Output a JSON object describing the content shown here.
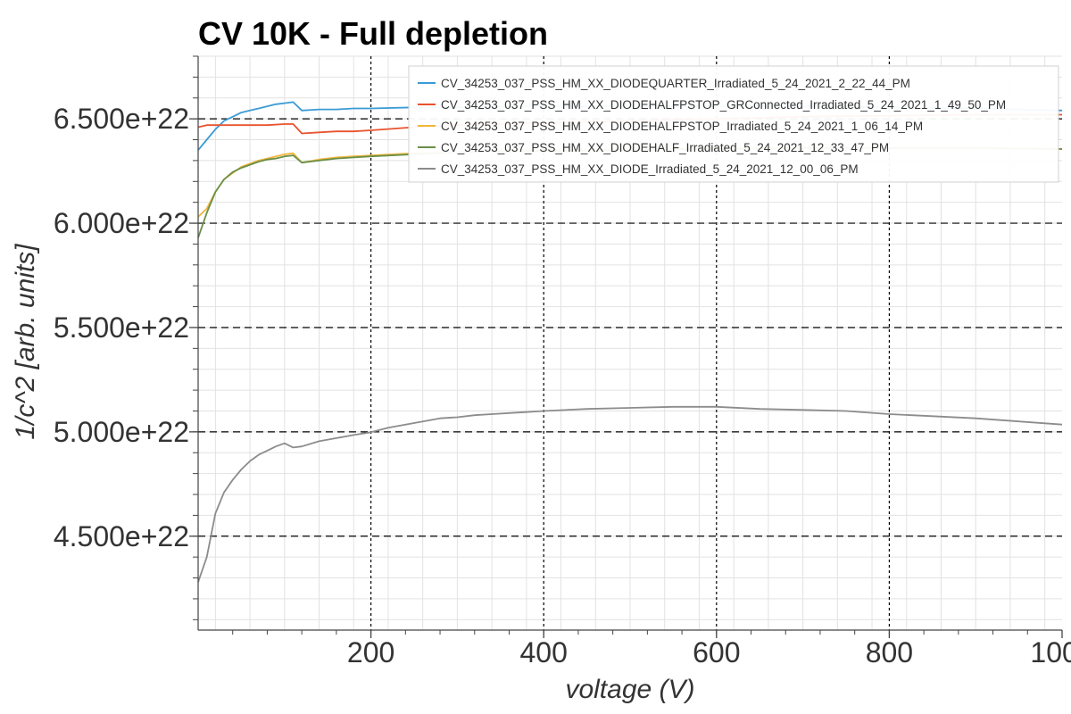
{
  "chart_data": {
    "type": "line",
    "title": "CV 10K - Full depletion",
    "xlabel": "voltage (V)",
    "ylabel": "1/c^2 [arb. units]",
    "xlim": [
      0,
      1000
    ],
    "ylim": [
      4.05e+22,
      6.8e+22
    ],
    "x_ticks": [
      200,
      400,
      600,
      800,
      1000
    ],
    "x_tick_labels": [
      "200",
      "400",
      "600",
      "800",
      "1000"
    ],
    "y_ticks": [
      4.5e+22,
      5e+22,
      5.5e+22,
      6e+22,
      6.5e+22
    ],
    "y_tick_labels": [
      "4.500e+22",
      "5.000e+22",
      "5.500e+22",
      "6.000e+22",
      "6.500e+22"
    ],
    "grid": true,
    "legend_position": "top-right",
    "reference_lines": {
      "horizontal": [
        4.5e+22,
        5e+22,
        5.5e+22,
        6e+22,
        6.5e+22
      ],
      "vertical": [
        200,
        400,
        600,
        800
      ]
    },
    "series": [
      {
        "name": "CV_34253_037_PSS_HM_XX_DIODEQUARTER_Irradiated_5_24_2021_2_22_44_PM",
        "color": "#3a9bd5",
        "x": [
          0,
          10,
          20,
          30,
          40,
          50,
          60,
          70,
          80,
          90,
          100,
          110,
          120,
          140,
          160,
          180,
          200,
          250,
          300,
          400,
          500,
          600,
          700,
          800,
          900,
          1000
        ],
        "y": [
          6.35e+22,
          6.4e+22,
          6.45e+22,
          6.49e+22,
          6.51e+22,
          6.53e+22,
          6.54e+22,
          6.55e+22,
          6.56e+22,
          6.57e+22,
          6.575e+22,
          6.58e+22,
          6.54e+22,
          6.545e+22,
          6.545e+22,
          6.55e+22,
          6.55e+22,
          6.555e+22,
          6.555e+22,
          6.56e+22,
          6.56e+22,
          6.56e+22,
          6.56e+22,
          6.555e+22,
          6.55e+22,
          6.54e+22
        ]
      },
      {
        "name": "CV_34253_037_PSS_HM_XX_DIODEHALFPSTOP_GRConnected_Irradiated_5_24_2021_1_49_50_PM",
        "color": "#e8532e",
        "x": [
          0,
          10,
          20,
          40,
          60,
          80,
          100,
          110,
          120,
          140,
          160,
          180,
          200,
          250,
          300,
          400,
          500,
          600,
          700,
          800,
          900,
          1000
        ],
        "y": [
          6.46e+22,
          6.47e+22,
          6.47e+22,
          6.47e+22,
          6.47e+22,
          6.47e+22,
          6.475e+22,
          6.475e+22,
          6.43e+22,
          6.435e+22,
          6.44e+22,
          6.44e+22,
          6.445e+22,
          6.46e+22,
          6.47e+22,
          6.48e+22,
          6.49e+22,
          6.5e+22,
          6.51e+22,
          6.515e+22,
          6.52e+22,
          6.52e+22
        ]
      },
      {
        "name": "CV_34253_037_PSS_HM_XX_DIODEHALFPSTOP_Irradiated_5_24_2021_1_06_14_PM",
        "color": "#f0b63c",
        "x": [
          0,
          10,
          20,
          30,
          40,
          50,
          60,
          70,
          80,
          90,
          100,
          110,
          120,
          140,
          160,
          180,
          200,
          250,
          300,
          400,
          500,
          600,
          700,
          800,
          900,
          1000
        ],
        "y": [
          6.03e+22,
          6.07e+22,
          6.15e+22,
          6.21e+22,
          6.24e+22,
          6.27e+22,
          6.285e+22,
          6.3e+22,
          6.31e+22,
          6.32e+22,
          6.33e+22,
          6.335e+22,
          6.29e+22,
          6.305e+22,
          6.315e+22,
          6.32e+22,
          6.325e+22,
          6.335e+22,
          6.34e+22,
          6.35e+22,
          6.355e+22,
          6.36e+22,
          6.36e+22,
          6.36e+22,
          6.36e+22,
          6.355e+22
        ]
      },
      {
        "name": "CV_34253_037_PSS_HM_XX_DIODEHALF_Irradiated_5_24_2021_12_33_47_PM",
        "color": "#6a8f47",
        "x": [
          0,
          10,
          20,
          30,
          40,
          50,
          60,
          70,
          80,
          90,
          100,
          110,
          120,
          140,
          160,
          180,
          200,
          250,
          300,
          400,
          500,
          600,
          700,
          800,
          900,
          1000
        ],
        "y": [
          5.93e+22,
          6.05e+22,
          6.15e+22,
          6.21e+22,
          6.245e+22,
          6.265e+22,
          6.28e+22,
          6.295e+22,
          6.305e+22,
          6.31e+22,
          6.32e+22,
          6.325e+22,
          6.29e+22,
          6.3e+22,
          6.31e+22,
          6.315e+22,
          6.32e+22,
          6.33e+22,
          6.34e+22,
          6.345e+22,
          6.35e+22,
          6.355e+22,
          6.36e+22,
          6.36e+22,
          6.36e+22,
          6.355e+22
        ]
      },
      {
        "name": "CV_34253_037_PSS_HM_XX_DIODE_Irradiated_5_24_2021_12_00_06_PM",
        "color": "#8c8c8c",
        "x": [
          0,
          10,
          20,
          30,
          40,
          50,
          60,
          70,
          80,
          90,
          100,
          110,
          120,
          140,
          160,
          180,
          200,
          220,
          240,
          260,
          280,
          300,
          320,
          340,
          360,
          380,
          400,
          450,
          500,
          550,
          600,
          650,
          700,
          750,
          800,
          850,
          900,
          950,
          1000
        ],
        "y": [
          4.28e+22,
          4.4e+22,
          4.61e+22,
          4.71e+22,
          4.77e+22,
          4.82e+22,
          4.86e+22,
          4.89e+22,
          4.91e+22,
          4.93e+22,
          4.945e+22,
          4.925e+22,
          4.93e+22,
          4.955e+22,
          4.97e+22,
          4.985e+22,
          4.998e+22,
          5.02e+22,
          5.035e+22,
          5.05e+22,
          5.065e+22,
          5.07e+22,
          5.08e+22,
          5.085e+22,
          5.09e+22,
          5.095e+22,
          5.1e+22,
          5.11e+22,
          5.115e+22,
          5.12e+22,
          5.12e+22,
          5.11e+22,
          5.105e+22,
          5.1e+22,
          5.085e+22,
          5.075e+22,
          5.065e+22,
          5.05e+22,
          5.035e+22
        ]
      }
    ]
  }
}
